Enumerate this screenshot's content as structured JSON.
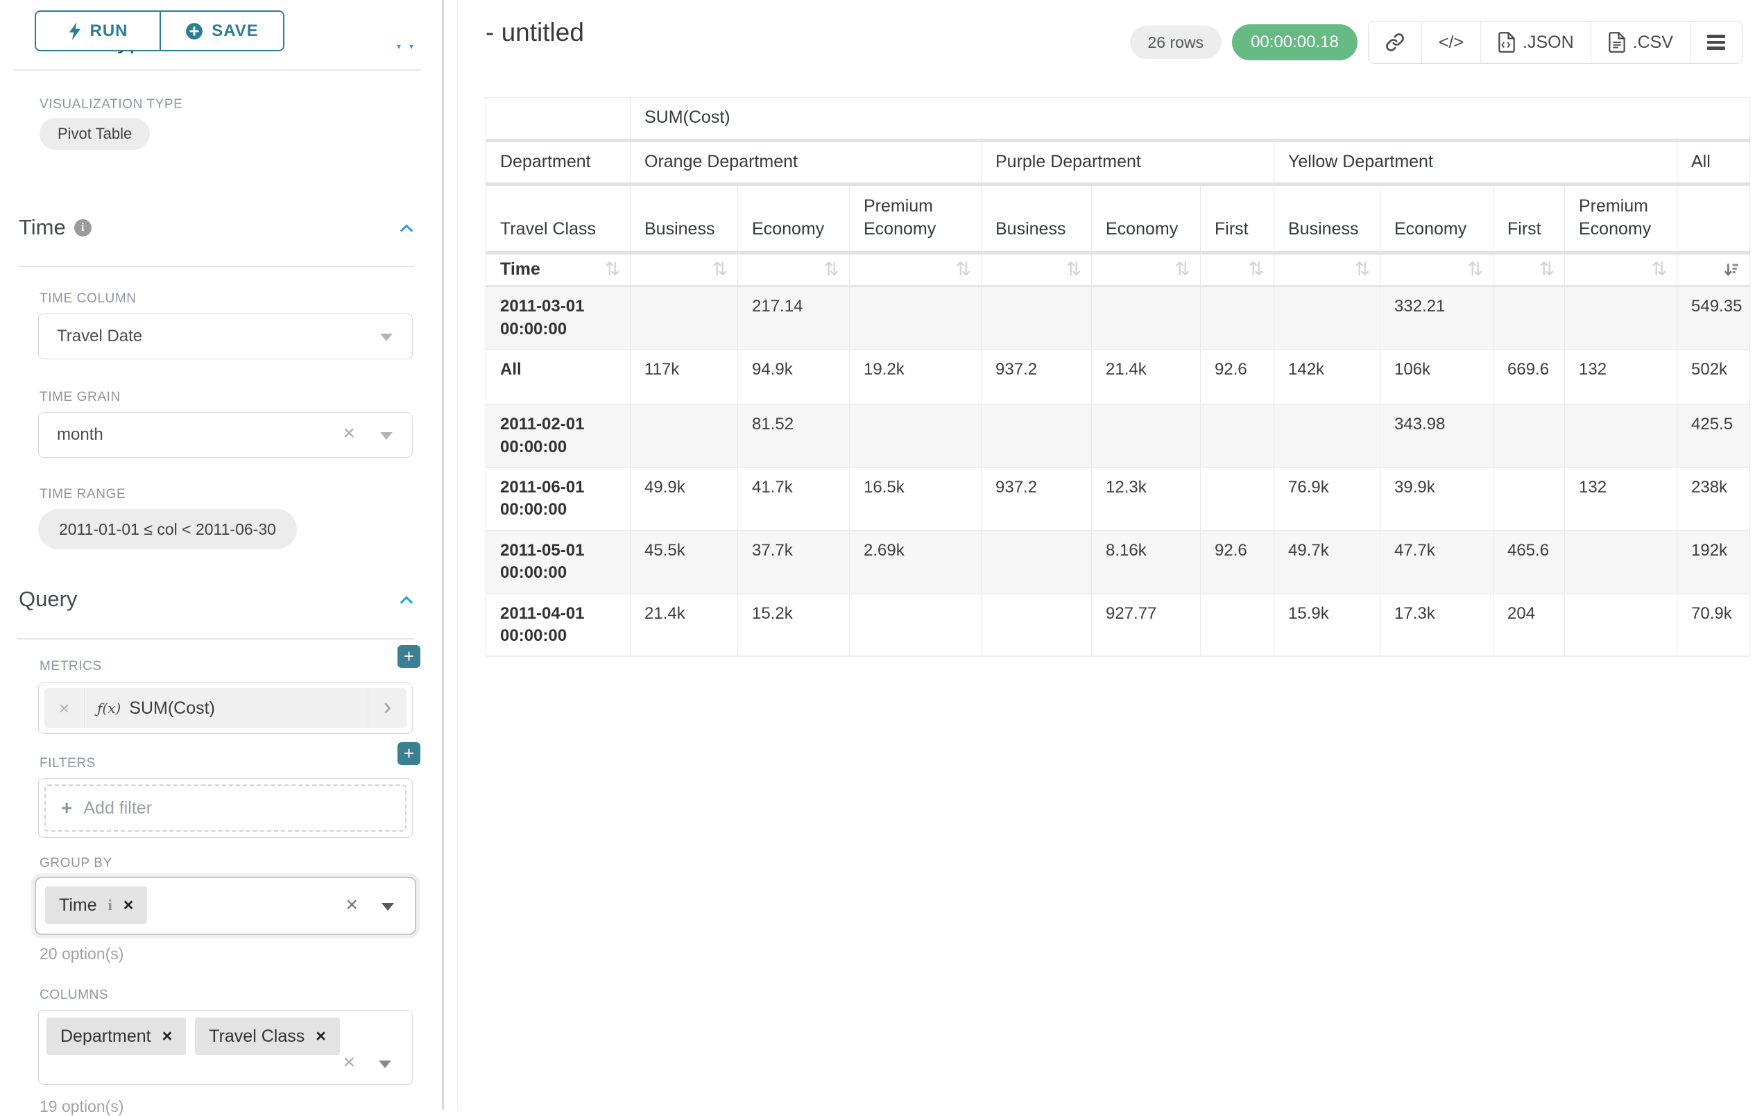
{
  "colors": {
    "accent_teal": "#2b7d97",
    "plus_button_teal": "#3b7f93",
    "chevron_blue": "#2f9fd3",
    "timer_green": "#67ba84",
    "label_gray": "#8c97a0"
  },
  "icons": {
    "plus": "+",
    "sort": "⇅",
    "clear": "×",
    "chip_x": "×",
    "chevron_right": "›",
    "caret_down": "▾",
    "info": "i",
    "fx": "ƒ(x)"
  },
  "toolbar": {
    "run_label": "RUN",
    "save_label": "SAVE"
  },
  "chart_type_section": {
    "heading": "Chart Type",
    "viz_type_label": "VISUALIZATION TYPE",
    "viz_type_value": "Pivot Table"
  },
  "time_section": {
    "heading": "Time",
    "time_column_label": "TIME COLUMN",
    "time_column_value": "Travel Date",
    "time_grain_label": "TIME GRAIN",
    "time_grain_value": "month",
    "time_range_label": "TIME RANGE",
    "time_range_value": "2011-01-01 ≤ col < 2011-06-30"
  },
  "query_section": {
    "heading": "Query",
    "metrics_label": "METRICS",
    "metric_fx": "ƒ(x)",
    "metric_name": "SUM(Cost)",
    "filters_label": "FILTERS",
    "add_filter_label": "Add filter",
    "group_by_label": "GROUP BY",
    "group_by_chip": "Time",
    "group_by_hint": "20 option(s)",
    "columns_label": "COLUMNS",
    "columns_chips": [
      "Department",
      "Travel Class"
    ],
    "columns_hint": "19 option(s)"
  },
  "results_header": {
    "title": "- untitled",
    "row_count_badge": "26 rows",
    "timer": "00:00:00.18",
    "code_button": "</>",
    "export_json_label": ".JSON",
    "export_csv_label": ".CSV"
  },
  "pivot": {
    "metric_header": "SUM(Cost)",
    "row1_label": "Department",
    "row2_label": "Travel Class",
    "time_label": "Time",
    "groups": [
      {
        "label": "Orange Department",
        "cols": [
          "Business",
          "Economy",
          "Premium Economy"
        ]
      },
      {
        "label": "Purple Department",
        "cols": [
          "Business",
          "Economy",
          "First"
        ]
      },
      {
        "label": "Yellow Department",
        "cols": [
          "Business",
          "Economy",
          "First",
          "Premium Economy"
        ]
      },
      {
        "label": "All",
        "cols": [
          ""
        ]
      }
    ],
    "rows": [
      {
        "label": "2011-03-01 00:00:00",
        "values": [
          "",
          "217.14",
          "",
          "",
          "",
          "",
          "",
          "332.21",
          "",
          "",
          "549.35"
        ]
      },
      {
        "label": "All",
        "values": [
          "117k",
          "94.9k",
          "19.2k",
          "937.2",
          "21.4k",
          "92.6",
          "142k",
          "106k",
          "669.6",
          "132",
          "502k"
        ]
      },
      {
        "label": "2011-02-01 00:00:00",
        "values": [
          "",
          "81.52",
          "",
          "",
          "",
          "",
          "",
          "343.98",
          "",
          "",
          "425.5"
        ]
      },
      {
        "label": "2011-06-01 00:00:00",
        "values": [
          "49.9k",
          "41.7k",
          "16.5k",
          "937.2",
          "12.3k",
          "",
          "76.9k",
          "39.9k",
          "",
          "132",
          "238k"
        ]
      },
      {
        "label": "2011-05-01 00:00:00",
        "values": [
          "45.5k",
          "37.7k",
          "2.69k",
          "",
          "8.16k",
          "92.6",
          "49.7k",
          "47.7k",
          "465.6",
          "",
          "192k"
        ]
      },
      {
        "label": "2011-04-01 00:00:00",
        "values": [
          "21.4k",
          "15.2k",
          "",
          "",
          "927.77",
          "",
          "15.9k",
          "17.3k",
          "204",
          "",
          "70.9k"
        ]
      }
    ]
  }
}
